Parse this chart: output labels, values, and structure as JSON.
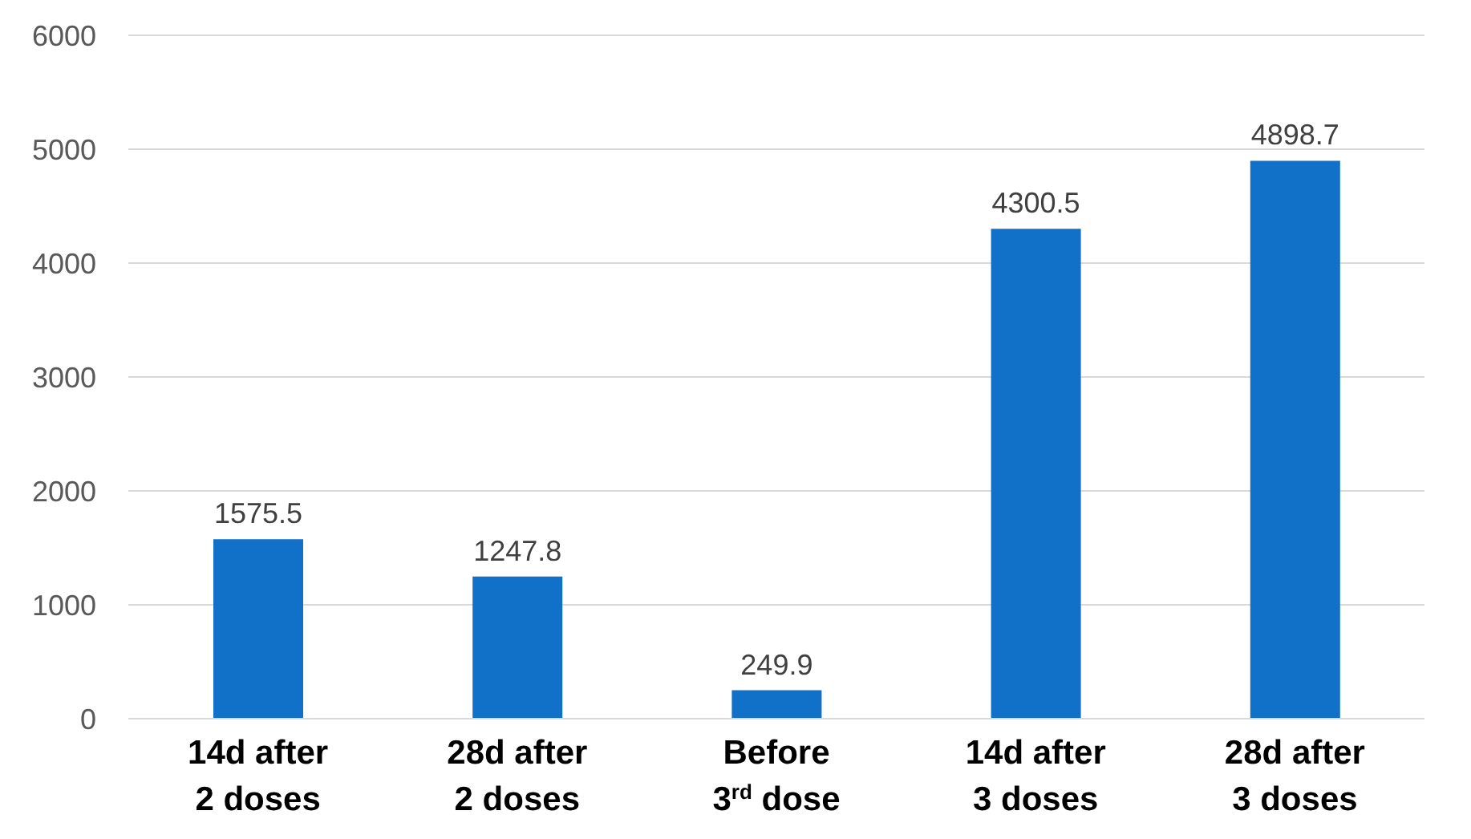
{
  "chart_data": {
    "type": "bar",
    "categories": [
      "14d after\n2 doses",
      "28d after\n2 doses",
      "Before\n3$^{rd}$ dose",
      "14d after\n3 doses",
      "28d after\n3 doses"
    ],
    "values": [
      1575.5,
      1247.8,
      249.9,
      4300.5,
      4898.7
    ],
    "color": "#1170c8",
    "data_labels": true,
    "ylim": [
      0,
      6000
    ],
    "yticks": [
      0,
      1000,
      2000,
      3000,
      4000,
      5000,
      6000
    ],
    "grid": "y"
  }
}
